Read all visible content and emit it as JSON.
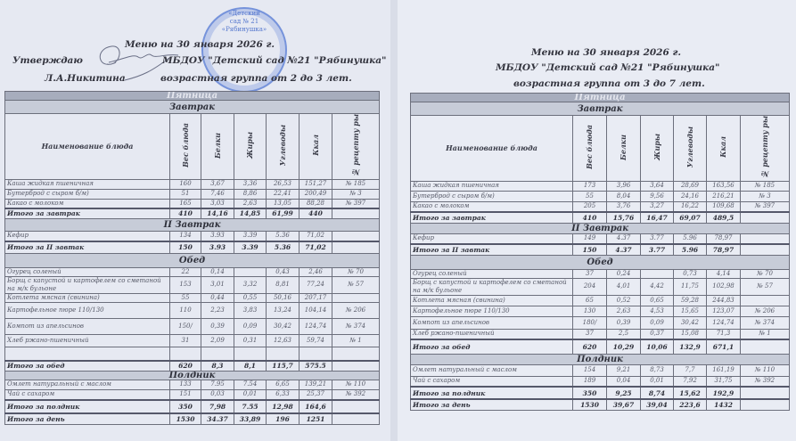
{
  "left": {
    "approve": "Утверждаю",
    "signer": "Л.А.Никитина",
    "title": "Меню на 30 января 2026 г.",
    "org": "МБДОУ \"Детский сад №21 \"Рябинушка\"",
    "group": "возрастная группа от 2 до 3 лет.",
    "stamp": {
      "line1": "«Детский",
      "line2": "сад № 21",
      "line3": "«Рябинушка»",
      "color": "#4a6fd0"
    },
    "day": "Пятница",
    "headers": [
      "Наименование блюда",
      "Вес блюда",
      "Белки",
      "Жиры",
      "Углеводы",
      "Ккал",
      "№ рецепту ры"
    ],
    "rows": [
      {
        "type": "sec",
        "label": "Завтрак"
      },
      {
        "type": "hdr"
      },
      {
        "type": "row",
        "c": [
          "Каша жидкая пшеничная",
          "160",
          "3,67",
          "3,36",
          "26,53",
          "151,27",
          "№ 185"
        ]
      },
      {
        "type": "row",
        "c": [
          "Бутерброд с сыром б/м)",
          "51",
          "7,46",
          "8,86",
          "22,41",
          "200,49",
          "№ 3"
        ]
      },
      {
        "type": "row",
        "c": [
          "Какао с молоком",
          "165",
          "3,03",
          "2,63",
          "13,05",
          "88,28",
          "№ 397"
        ]
      },
      {
        "type": "tot",
        "c": [
          "Итого за завтрак",
          "410",
          "14,16",
          "14,85",
          "61,99",
          "440",
          ""
        ]
      },
      {
        "type": "sec",
        "label": "II Завтрак"
      },
      {
        "type": "row",
        "c": [
          "Кефир",
          "134",
          "3.93",
          "3.39",
          "5.36",
          "71,02",
          ""
        ]
      },
      {
        "type": "tot",
        "c": [
          "Итого за II завтак",
          "150",
          "3.93",
          "3.39",
          "5.36",
          "71,02",
          ""
        ]
      },
      {
        "type": "sec",
        "label": "Обед"
      },
      {
        "type": "row",
        "c": [
          "Огурец соленый",
          "22",
          "0,14",
          "",
          "0,43",
          "2,46",
          "№ 70"
        ]
      },
      {
        "type": "row",
        "c": [
          "Борщ с капустой и картофелем со сметаной на м/к бульоне",
          "153",
          "3,01",
          "3,32",
          "8,81",
          "77,24",
          "№ 57"
        ]
      },
      {
        "type": "row",
        "c": [
          "Котлета мясная (свинина)",
          "55",
          "0,44",
          "0,55",
          "50,16",
          "207,17",
          ""
        ]
      },
      {
        "type": "row",
        "c": [
          "Картофельное пюре 110/130",
          "110",
          "2,23",
          "3,83",
          "13,24",
          "104,14",
          "№ 206"
        ]
      },
      {
        "type": "row",
        "c": [
          "Компот из апельсинов",
          "150/",
          "0,39",
          "0,09",
          "30,42",
          "124,74",
          "№ 374"
        ]
      },
      {
        "type": "row",
        "c": [
          "Хлеб ржано-пшеничный",
          "31",
          "2,09",
          "0,31",
          "12,63",
          "59,74",
          "№ 1"
        ]
      },
      {
        "type": "row",
        "c": [
          "",
          "",
          "",
          "",
          "",
          "",
          ""
        ]
      },
      {
        "type": "tot",
        "c": [
          "Итого за обед",
          "620",
          "8,3",
          "8,1",
          "115,7",
          "575.5",
          ""
        ]
      },
      {
        "type": "sec",
        "label": "Полдник"
      },
      {
        "type": "row",
        "c": [
          "Омлет натуральный с маслом",
          "133",
          "7.95",
          "7.54",
          "6,65",
          "139,21",
          "№ 110"
        ]
      },
      {
        "type": "row",
        "c": [
          "Чай с сахаром",
          "151",
          "0,03",
          "0,01",
          "6,33",
          "25,37",
          "№ 392"
        ]
      },
      {
        "type": "tot",
        "c": [
          "Итого за полдник",
          "350",
          "7,98",
          "7.55",
          "12,98",
          "164,6",
          ""
        ]
      },
      {
        "type": "tot",
        "c": [
          "Итого за день",
          "1530",
          "34.37",
          "33,89",
          "196",
          "1251",
          ""
        ]
      }
    ]
  },
  "right": {
    "title": "Меню на 30 января 2026 г.",
    "org": "МБДОУ \"Детский сад №21 \"Рябинушка\"",
    "group": "возрастная группа от 3 до 7 лет.",
    "day": "Пятница",
    "headers": [
      "Наименование блюда",
      "Вес блюда",
      "Белки",
      "Жиры",
      "Углеводы",
      "Ккал",
      "№ рецепту ры"
    ],
    "rows": [
      {
        "type": "sec",
        "label": "Завтрак"
      },
      {
        "type": "hdr"
      },
      {
        "type": "row",
        "c": [
          "Каша жидкая пшеничная",
          "173",
          "3,96",
          "3,64",
          "28,69",
          "163,56",
          "№ 185"
        ]
      },
      {
        "type": "row",
        "c": [
          "Бутерброд с сыром б/м)",
          "55",
          "8,04",
          "9,56",
          "24,16",
          "216,21",
          "№ 3"
        ]
      },
      {
        "type": "row",
        "c": [
          "Какао с молоком",
          "205",
          "3,76",
          "3,27",
          "16,22",
          "109,68",
          "№ 397"
        ]
      },
      {
        "type": "tot",
        "c": [
          "Итого за завтрак",
          "410",
          "15,76",
          "16,47",
          "69,07",
          "489,5",
          ""
        ]
      },
      {
        "type": "sec",
        "label": "II Завтрак"
      },
      {
        "type": "row",
        "c": [
          "Кефир",
          "149",
          "4.37",
          "3.77",
          "5.96",
          "78,97",
          ""
        ]
      },
      {
        "type": "tot",
        "c": [
          "Итого за II завтак",
          "150",
          "4.37",
          "3.77",
          "5.96",
          "78,97",
          ""
        ]
      },
      {
        "type": "sec",
        "label": "Обед"
      },
      {
        "type": "row",
        "c": [
          "Огурец соленый",
          "37",
          "0,24",
          "",
          "0,73",
          "4,14",
          "№ 70"
        ]
      },
      {
        "type": "row",
        "c": [
          "Борщ с капустой и картофелем со сметаной на м/к бульоне",
          "204",
          "4,01",
          "4,42",
          "11,75",
          "102,98",
          "№ 57"
        ]
      },
      {
        "type": "row",
        "c": [
          "Котлета мясная (свинина)",
          "65",
          "0,52",
          "0,65",
          "59,28",
          "244,83",
          ""
        ]
      },
      {
        "type": "row",
        "c": [
          "Картофельное пюре 110/130",
          "130",
          "2,63",
          "4,53",
          "15,65",
          "123,07",
          "№ 206"
        ]
      },
      {
        "type": "row",
        "c": [
          "Компот из апельсинов",
          "180/",
          "0,39",
          "0,09",
          "30,42",
          "124,74",
          "№ 374"
        ]
      },
      {
        "type": "row",
        "c": [
          "Хлеб ржано-пшеничный",
          "37",
          "2,5",
          "0,37",
          "15,08",
          "71,3",
          "№ 1"
        ]
      },
      {
        "type": "tot",
        "c": [
          "Итого за обед",
          "620",
          "10,29",
          "10,06",
          "132,9",
          "671,1",
          ""
        ]
      },
      {
        "type": "sec",
        "label": "Полдник"
      },
      {
        "type": "row",
        "c": [
          "Омлет натуральный с маслом",
          "154",
          "9,21",
          "8,73",
          "7,7",
          "161,19",
          "№ 110"
        ]
      },
      {
        "type": "row",
        "c": [
          "Чай с сахаром",
          "189",
          "0,04",
          "0,01",
          "7,92",
          "31,75",
          "№ 392"
        ]
      },
      {
        "type": "tot",
        "c": [
          "Итого за полдник",
          "350",
          "9,25",
          "8,74",
          "15,62",
          "192,9",
          ""
        ]
      },
      {
        "type": "tot",
        "c": [
          "Итого за день",
          "1530",
          "39,67",
          "39,04",
          "223,6",
          "1432",
          ""
        ]
      }
    ]
  }
}
